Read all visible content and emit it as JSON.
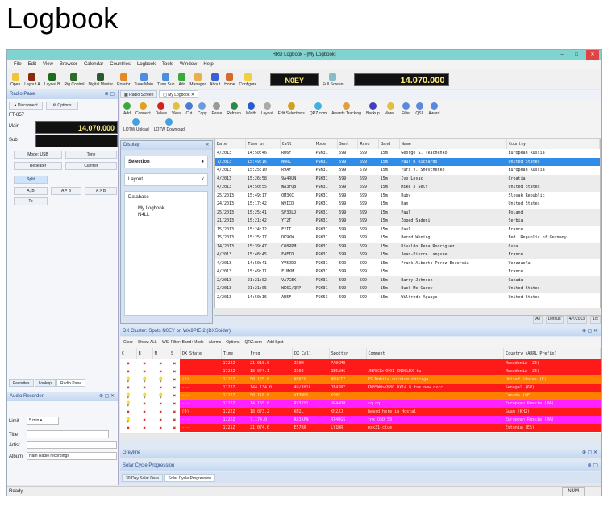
{
  "heading": "Logbook",
  "window": {
    "title": "HRD Logbook - [My Logbook]"
  },
  "menu": [
    "File",
    "Edit",
    "View",
    "Browser",
    "Calendar",
    "Countries",
    "Logbook",
    "Tools",
    "Window",
    "Help"
  ],
  "toolbar": {
    "buttons": [
      "Open",
      "Layout A",
      "Layout B",
      "Rig Control",
      "Digital Master",
      "Rotator",
      "Tune Main",
      "Tune Sub",
      "Add",
      "Manager",
      "About",
      "Home",
      "Configure"
    ],
    "callsign_display": "N0EY",
    "fullscreen": "Full Screen",
    "frequency_display": "14.070.000"
  },
  "radio_pane": {
    "title": "Radio Pane",
    "disconnect": "Disconnect",
    "options": "Options",
    "radio": "FT-857",
    "main_label": "Main",
    "main_freq": "14.070.000",
    "sub_label": "Sub",
    "mode": "Mode: USB",
    "tone": "Tone",
    "repeater": "Repeater",
    "clarifier": "Clarifier",
    "split": "Split",
    "a_b": "A, B",
    "a_eq_b": "A = B",
    "a_b2": "A > B",
    "to": "To"
  },
  "left_tabs": [
    "Favorites",
    "Lookup",
    "Radio Pane"
  ],
  "audio_recorder": {
    "title": "Audio Recorder",
    "limit_label": "Limit",
    "limit_value": "5 min",
    "title_label": "Title",
    "artist_label": "Artist",
    "album_label": "Album",
    "album_value": "Ham Radio recordings"
  },
  "doc_tabs": [
    "Radio Screen",
    "My Logbook"
  ],
  "logbook_toolbar": [
    "Add",
    "Connect",
    "Delete",
    "View",
    "Cut",
    "Copy",
    "Paste",
    "Refresh",
    "Width",
    "Layout",
    "Edit Selections",
    "QRZ.com",
    "Awards Tracking",
    "Backup",
    "More...",
    "Filter",
    "QSL",
    "Award"
  ],
  "logbook_toolbar2": [
    "LOTW Upload",
    "LOTW Download"
  ],
  "display": {
    "title": "Display",
    "sections": [
      "Selection",
      "Layout",
      "Database"
    ],
    "databases": [
      "My Logbook",
      "N4LL"
    ]
  },
  "grid": {
    "columns": [
      "Date",
      "Time on",
      "Call",
      "Mode",
      "Sent",
      "Rcvd",
      "Band",
      "Name",
      "Country"
    ],
    "rows": [
      [
        "4/2013",
        "14:50:46",
        "RU6F",
        "PSK31",
        "599",
        "599",
        "15m",
        "George S. Tkachenko",
        "European Russia"
      ],
      [
        "7/2013",
        "15:49:16",
        "N0RC",
        "PSK31",
        "599",
        "599",
        "15m",
        "Paul R Richards",
        "United States"
      ],
      [
        "4/2013",
        "15:25:10",
        "R9AF",
        "PSK31",
        "599",
        "579",
        "15m",
        "Yuri V. Shevchenko",
        "European Russia"
      ],
      [
        "4/2013",
        "15:26:58",
        "9A4RUN",
        "PSK31",
        "599",
        "599",
        "15m",
        "Ivo Lesac",
        "Croatia"
      ],
      [
        "4/2013",
        "14:50:55",
        "WA3YQB",
        "PSK31",
        "599",
        "599",
        "15m",
        "Mike J Self",
        "United States"
      ],
      [
        "25/2013",
        "15:49:17",
        "OM3KC",
        "PSK31",
        "599",
        "599",
        "15m",
        "Ruby",
        "Slovak Republic"
      ],
      [
        "24/2013",
        "15:17:42",
        "W9ICD",
        "PSK31",
        "599",
        "599",
        "15m",
        "Dan",
        "United States"
      ],
      [
        "25/2013",
        "15:25:41",
        "SP3OLD",
        "PSK31",
        "599",
        "599",
        "15m",
        "Paul",
        "Poland"
      ],
      [
        "21/2013",
        "15:21:42",
        "YT2T",
        "PSK31",
        "599",
        "599",
        "15m",
        "Zoped Sadeni",
        "Serbia"
      ],
      [
        "15/2013",
        "15:24:12",
        "F2IT",
        "PSK31",
        "599",
        "599",
        "15m",
        "Paul",
        "France"
      ],
      [
        "15/2013",
        "15:25:17",
        "DK9KW",
        "PSK31",
        "599",
        "599",
        "15m",
        "Bernd Wening",
        "Fed. Republic of Germany"
      ],
      [
        "14/2013",
        "15:39:47",
        "CO8RPM",
        "PSK31",
        "599",
        "599",
        "15m",
        "Rivaldo Pena Rodriguez",
        "Cuba"
      ],
      [
        "4/2013",
        "15:48:45",
        "F4EID",
        "PSK31",
        "599",
        "599",
        "15m",
        "Jean-Pierre Langure",
        "France"
      ],
      [
        "4/2013",
        "14:50:41",
        "YV5JDO",
        "PSK31",
        "599",
        "599",
        "15m",
        "Frank Alberto Pérez Escorcia",
        "Venezuela"
      ],
      [
        "4/2013",
        "15:49:11",
        "F1MKM",
        "PSK31",
        "599",
        "599",
        "15m",
        "",
        "France"
      ],
      [
        "2/2013",
        "21:21:02",
        "VA7GEK",
        "PSK31",
        "599",
        "599",
        "15m",
        "Barry Johnson",
        "Canada"
      ],
      [
        "2/2013",
        "21:21:05",
        "WK6G/QRP",
        "PSK31",
        "599",
        "599",
        "15m",
        "Buck Mc Garey",
        "United States"
      ],
      [
        "2/2013",
        "14:50:16",
        "AB5F",
        "PSK63",
        "599",
        "599",
        "15m",
        "Wilfredo Aguayo",
        "United States"
      ]
    ],
    "status": [
      "All",
      "Default",
      "4/7/2013",
      "1/5"
    ]
  },
  "dx_cluster": {
    "title": "DX Cluster: Spots N0EY on WA9PIE-2 (DXSpider)",
    "toolbar": [
      "Clear",
      "Show: ALL",
      "WSI Filter: Band+Mode",
      "Alarms",
      "Options",
      "QRZ.com",
      "Add Spot"
    ],
    "columns": [
      "C",
      "B",
      "M",
      "S",
      "DX State",
      "Time",
      "Freq",
      "DX Call",
      "Spotter",
      "Comment",
      "Country (ARRL Prefix)"
    ],
    "rows": [
      {
        "c": "x",
        "state": "---",
        "time": "1722Z",
        "freq": "21.015.0",
        "call": "Z30M",
        "spotter": "PA0CMR",
        "comment": "",
        "country": "Macedonia (Z3)",
        "color": "#ff1a1a"
      },
      {
        "c": "x",
        "state": "---",
        "time": "1722Z",
        "freq": "18.074.1",
        "call": "Z30Z",
        "spotter": "OE5AHS",
        "comment": "JN78CK>KN01-KN00LDX tu",
        "country": "Macedonia (Z3)",
        "color": "#ff1a1a"
      },
      {
        "c": "b",
        "state": "(1)",
        "time": "1722Z",
        "freq": "50.125.0",
        "call": "N9XEX",
        "spotter": "N0UCTZ",
        "comment": "ES Mobile outside chicago",
        "country": "United States (K)",
        "color": "#ff7f00"
      },
      {
        "c": "x",
        "state": "---",
        "time": "1722Z",
        "freq": "144.134.0",
        "call": "4U/JH1L",
        "spotter": "JF4XNY",
        "comment": "KN85WO>KN80 DX14.8 tnx new dxcc",
        "country": "Senegal (6W)",
        "color": "#ff1a1a"
      },
      {
        "c": "b",
        "state": "---",
        "time": "1722Z",
        "freq": "50.116.0",
        "call": "VE3WUS",
        "spotter": "K9PF",
        "comment": "",
        "country": "Canada (VE)",
        "color": "#ff7f00"
      },
      {
        "c": "m",
        "state": "---",
        "time": "1722Z",
        "freq": "14.155.0",
        "call": "RV3PY1",
        "spotter": "UR4ADB",
        "comment": "cq cq",
        "country": "European Russia (UA)",
        "color": "#ff22ff"
      },
      {
        "c": "x",
        "state": "(0)",
        "time": "1722Z",
        "freq": "18.073.2",
        "call": "KN2L",
        "spotter": "KH2JJ",
        "comment": "heard here in Hostal",
        "country": "Guam (KH2)",
        "color": "#ff1a1a"
      },
      {
        "c": "m",
        "state": "---",
        "time": "1722Z",
        "freq": "7.174.0",
        "call": "RX3APN",
        "spotter": "RT4UGS",
        "comment": "tnx QSO 59",
        "country": "European Russia (UA)",
        "color": "#ff22ff"
      },
      {
        "c": "x",
        "state": "---",
        "time": "1721Z",
        "freq": "21.074.0",
        "call": "ES7RR",
        "spotter": "LY1DR",
        "comment": "psk31 clue",
        "country": "Estonia (ES)",
        "color": "#ff1a1a"
      }
    ]
  },
  "greyline": {
    "title": "Greyline"
  },
  "solar": {
    "title": "Solar Cycle Progression",
    "tabs": [
      "30 Day Solar Data",
      "Solar Cycle Progression"
    ]
  },
  "statusbar": {
    "left": "Ready",
    "right": "NUM"
  }
}
